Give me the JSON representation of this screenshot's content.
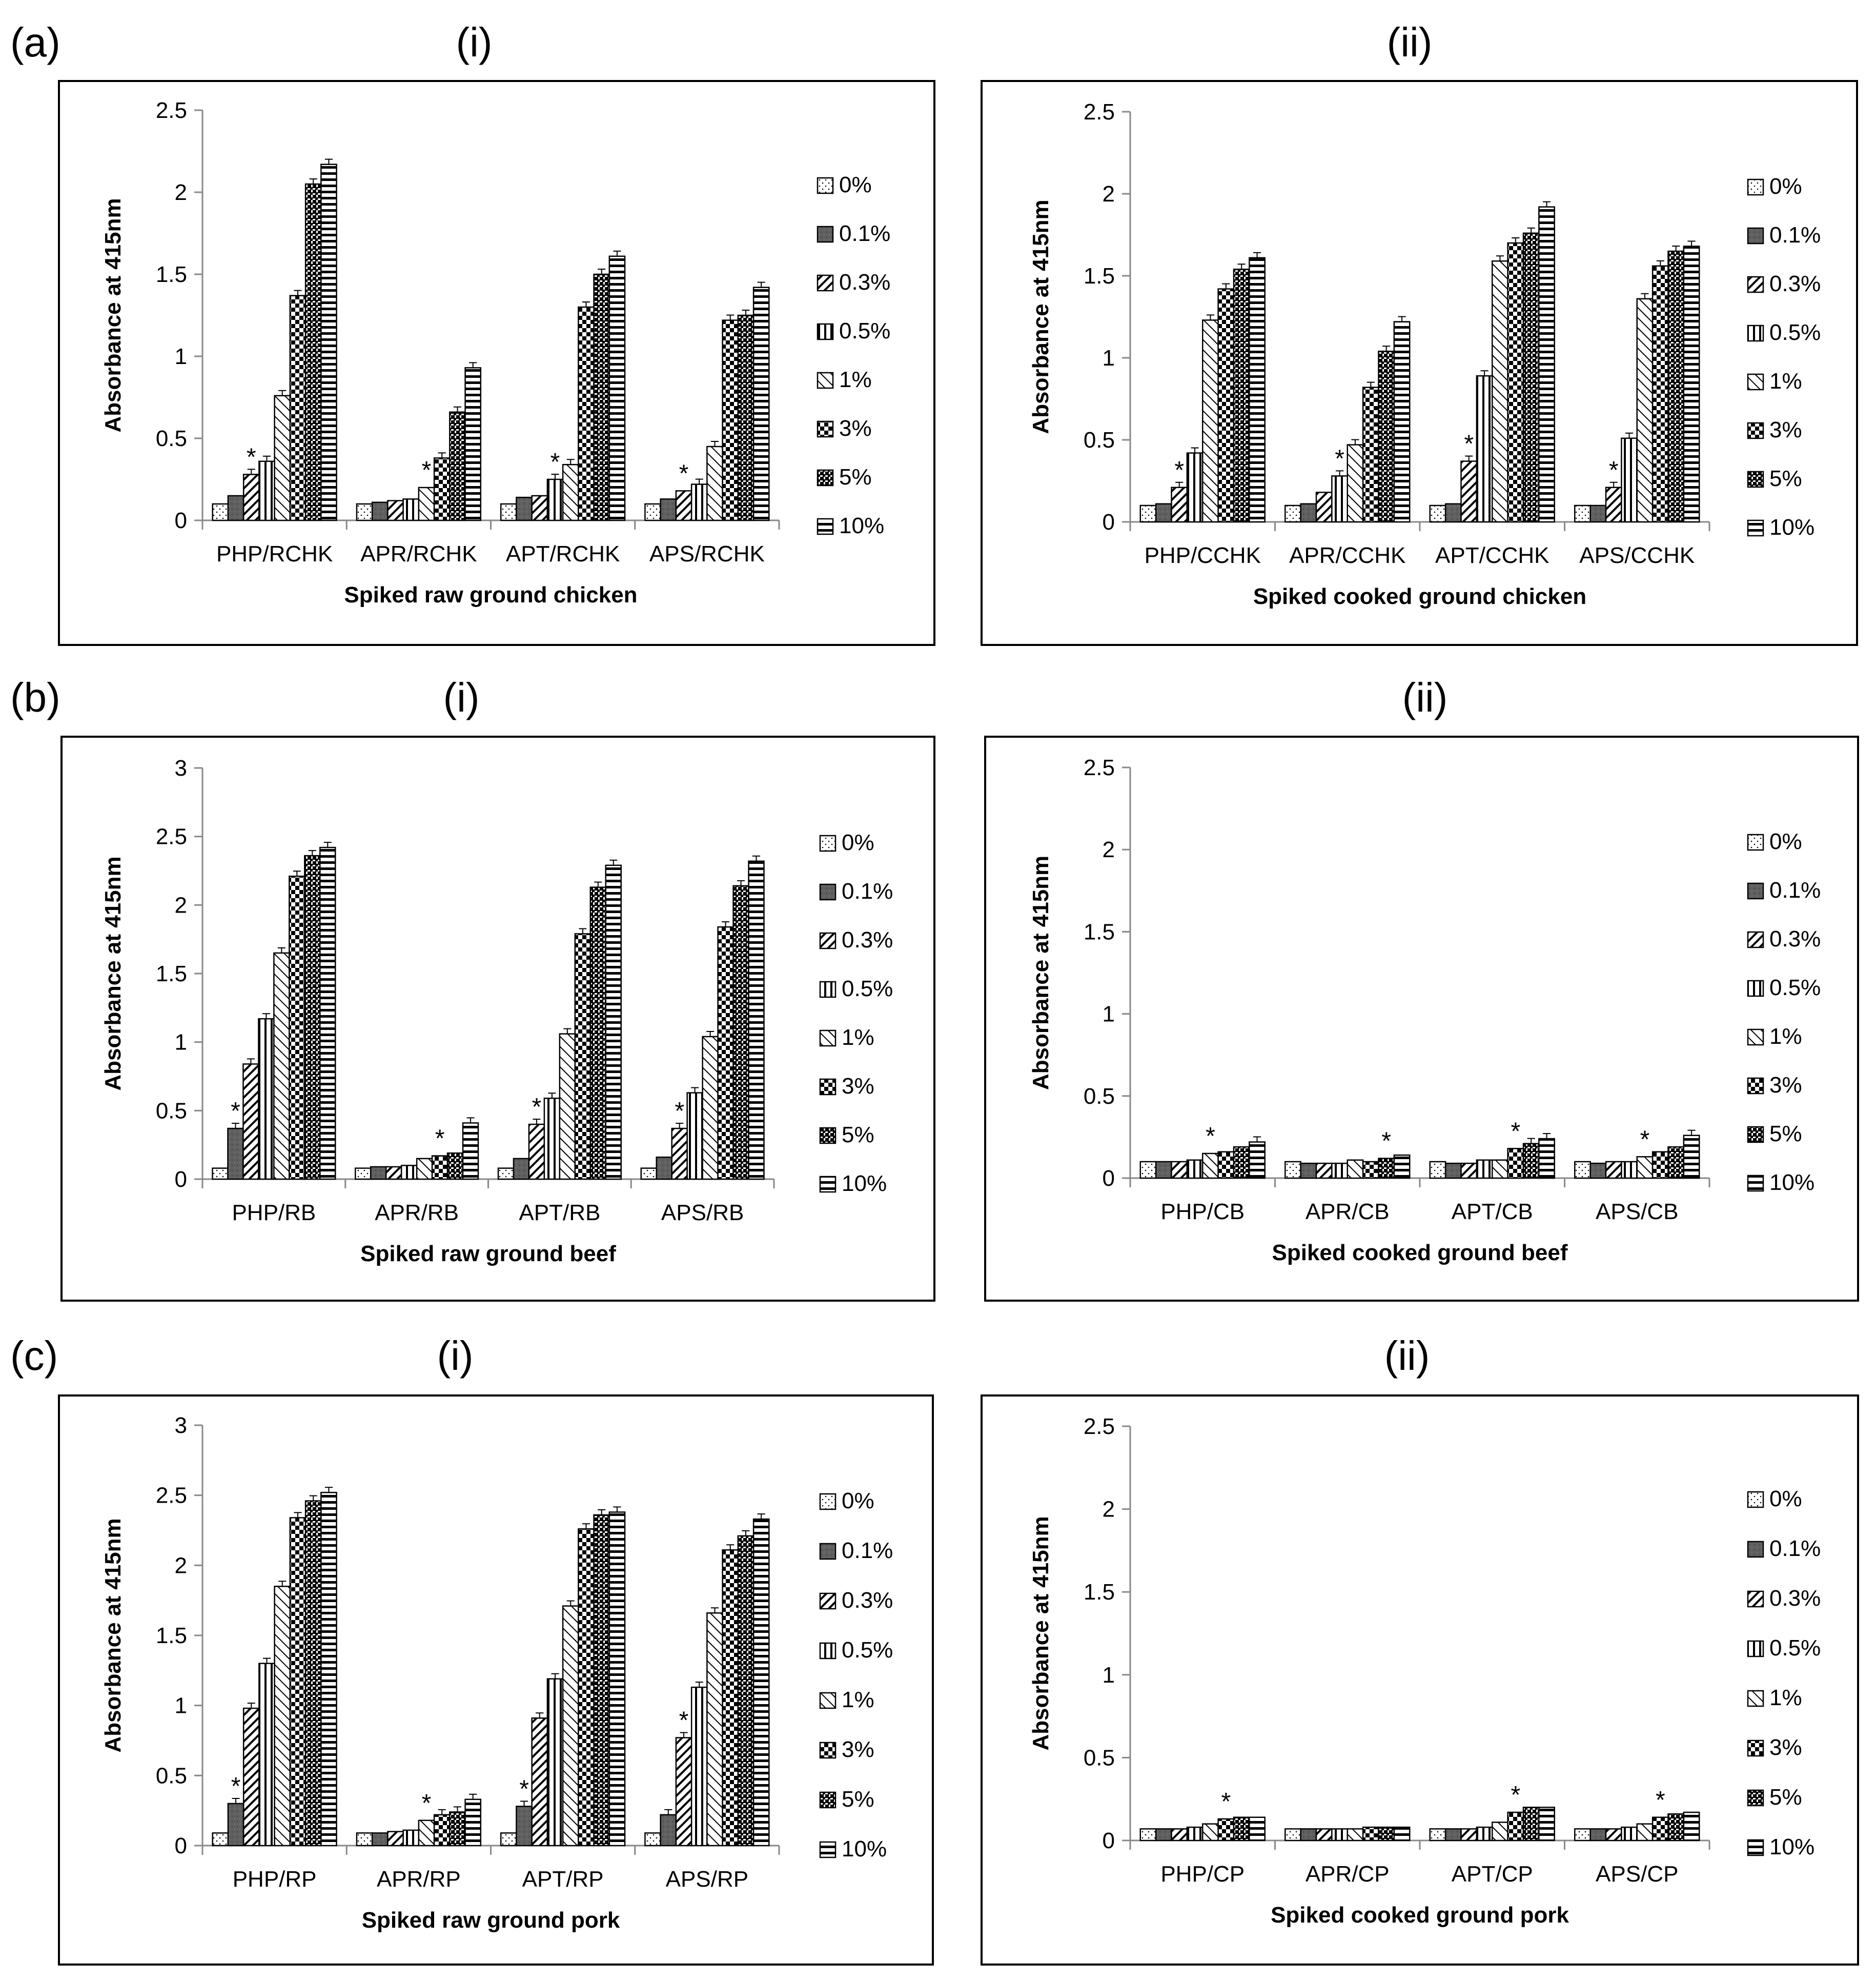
{
  "figure": {
    "legend_labels": [
      "0%",
      "0.1%",
      "0.3%",
      "0.5%",
      "1%",
      "3%",
      "5%",
      "10%"
    ],
    "y_axis_label": "Absorbance at 415nm"
  },
  "chart_data": [
    {
      "type": "bar",
      "panel": "(a)",
      "sub": "(i)",
      "title": "",
      "xlabel": "Spiked raw ground chicken",
      "ylabel": "Absorbance at 415nm",
      "ylim": [
        0,
        2.5
      ],
      "yticks": [
        "0",
        "0.5",
        "1",
        "1.5",
        "2",
        "2.5"
      ],
      "categories": [
        "PHP/RCHK",
        "APR/RCHK",
        "APT/RCHK",
        "APS/RCHK"
      ],
      "series": [
        {
          "name": "0%",
          "values": [
            0.1,
            0.1,
            0.1,
            0.1
          ]
        },
        {
          "name": "0.1%",
          "values": [
            0.15,
            0.11,
            0.14,
            0.13
          ]
        },
        {
          "name": "0.3%",
          "values": [
            0.28,
            0.12,
            0.15,
            0.18
          ]
        },
        {
          "name": "0.5%",
          "values": [
            0.36,
            0.13,
            0.25,
            0.22
          ]
        },
        {
          "name": "1%",
          "values": [
            0.76,
            0.2,
            0.34,
            0.45
          ]
        },
        {
          "name": "3%",
          "values": [
            1.37,
            0.38,
            1.3,
            1.22
          ]
        },
        {
          "name": "5%",
          "values": [
            2.05,
            0.66,
            1.5,
            1.25
          ]
        },
        {
          "name": "10%",
          "values": [
            2.17,
            0.93,
            1.61,
            1.42
          ]
        }
      ],
      "asterisk_series": [
        2,
        4,
        3,
        2
      ]
    },
    {
      "type": "bar",
      "panel": "",
      "sub": "(ii)",
      "title": "",
      "xlabel": "Spiked cooked ground chicken",
      "ylabel": "Absorbance at 415nm",
      "ylim": [
        0,
        2.5
      ],
      "yticks": [
        "0",
        "0.5",
        "1",
        "1.5",
        "2",
        "2.5"
      ],
      "categories": [
        "PHP/CCHK",
        "APR/CCHK",
        "APT/CCHK",
        "APS/CCHK"
      ],
      "series": [
        {
          "name": "0%",
          "values": [
            0.1,
            0.1,
            0.1,
            0.1
          ]
        },
        {
          "name": "0.1%",
          "values": [
            0.11,
            0.11,
            0.11,
            0.1
          ]
        },
        {
          "name": "0.3%",
          "values": [
            0.21,
            0.18,
            0.37,
            0.21
          ]
        },
        {
          "name": "0.5%",
          "values": [
            0.42,
            0.28,
            0.89,
            0.51
          ]
        },
        {
          "name": "1%",
          "values": [
            1.23,
            0.47,
            1.59,
            1.36
          ]
        },
        {
          "name": "3%",
          "values": [
            1.42,
            0.82,
            1.7,
            1.56
          ]
        },
        {
          "name": "5%",
          "values": [
            1.54,
            1.04,
            1.76,
            1.65
          ]
        },
        {
          "name": "10%",
          "values": [
            1.61,
            1.22,
            1.92,
            1.68
          ]
        }
      ],
      "asterisk_series": [
        2,
        3,
        2,
        2
      ]
    },
    {
      "type": "bar",
      "panel": "(b)",
      "sub": "(i)",
      "title": "",
      "xlabel": "Spiked raw ground beef",
      "ylabel": "Absorbance at 415nm",
      "ylim": [
        0,
        3
      ],
      "yticks": [
        "0",
        "0.5",
        "1",
        "1.5",
        "2",
        "2.5",
        "3"
      ],
      "categories": [
        "PHP/RB",
        "APR/RB",
        "APT/RB",
        "APS/RB"
      ],
      "series": [
        {
          "name": "0%",
          "values": [
            0.08,
            0.08,
            0.08,
            0.08
          ]
        },
        {
          "name": "0.1%",
          "values": [
            0.37,
            0.09,
            0.15,
            0.16
          ]
        },
        {
          "name": "0.3%",
          "values": [
            0.84,
            0.09,
            0.4,
            0.37
          ]
        },
        {
          "name": "0.5%",
          "values": [
            1.17,
            0.1,
            0.59,
            0.63
          ]
        },
        {
          "name": "1%",
          "values": [
            1.65,
            0.15,
            1.06,
            1.04
          ]
        },
        {
          "name": "3%",
          "values": [
            2.21,
            0.17,
            1.79,
            1.84
          ]
        },
        {
          "name": "5%",
          "values": [
            2.36,
            0.19,
            2.13,
            2.14
          ]
        },
        {
          "name": "10%",
          "values": [
            2.42,
            0.41,
            2.29,
            2.32
          ]
        }
      ],
      "asterisk_series": [
        1,
        5,
        2,
        2
      ]
    },
    {
      "type": "bar",
      "panel": "",
      "sub": "(ii)",
      "title": "",
      "xlabel": "Spiked cooked ground beef",
      "ylabel": "Absorbance at 415nm",
      "ylim": [
        0,
        2.5
      ],
      "yticks": [
        "0",
        "0.5",
        "1",
        "1.5",
        "2",
        "2.5"
      ],
      "categories": [
        "PHP/CB",
        "APR/CB",
        "APT/CB",
        "APS/CB"
      ],
      "series": [
        {
          "name": "0%",
          "values": [
            0.1,
            0.1,
            0.1,
            0.1
          ]
        },
        {
          "name": "0.1%",
          "values": [
            0.1,
            0.09,
            0.09,
            0.09
          ]
        },
        {
          "name": "0.3%",
          "values": [
            0.1,
            0.09,
            0.09,
            0.1
          ]
        },
        {
          "name": "0.5%",
          "values": [
            0.11,
            0.09,
            0.11,
            0.1
          ]
        },
        {
          "name": "1%",
          "values": [
            0.15,
            0.11,
            0.11,
            0.13
          ]
        },
        {
          "name": "3%",
          "values": [
            0.16,
            0.1,
            0.18,
            0.16
          ]
        },
        {
          "name": "5%",
          "values": [
            0.19,
            0.12,
            0.21,
            0.19
          ]
        },
        {
          "name": "10%",
          "values": [
            0.22,
            0.14,
            0.24,
            0.26
          ]
        }
      ],
      "asterisk_series": [
        4,
        6,
        5,
        4
      ]
    },
    {
      "type": "bar",
      "panel": "(c)",
      "sub": "(i)",
      "title": "",
      "xlabel": "Spiked raw ground pork",
      "ylabel": "Absorbance at 415nm",
      "ylim": [
        0,
        3
      ],
      "yticks": [
        "0",
        "0.5",
        "1",
        "1.5",
        "2",
        "2.5",
        "3"
      ],
      "categories": [
        "PHP/RP",
        "APR/RP",
        "APT/RP",
        "APS/RP"
      ],
      "series": [
        {
          "name": "0%",
          "values": [
            0.09,
            0.09,
            0.09,
            0.09
          ]
        },
        {
          "name": "0.1%",
          "values": [
            0.3,
            0.09,
            0.28,
            0.22
          ]
        },
        {
          "name": "0.3%",
          "values": [
            0.98,
            0.1,
            0.91,
            0.77
          ]
        },
        {
          "name": "0.5%",
          "values": [
            1.3,
            0.11,
            1.19,
            1.13
          ]
        },
        {
          "name": "1%",
          "values": [
            1.85,
            0.18,
            1.71,
            1.66
          ]
        },
        {
          "name": "3%",
          "values": [
            2.34,
            0.22,
            2.26,
            2.11
          ]
        },
        {
          "name": "5%",
          "values": [
            2.46,
            0.24,
            2.36,
            2.21
          ]
        },
        {
          "name": "10%",
          "values": [
            2.52,
            0.33,
            2.38,
            2.33
          ]
        }
      ],
      "asterisk_series": [
        1,
        4,
        1,
        2
      ]
    },
    {
      "type": "bar",
      "panel": "",
      "sub": "(ii)",
      "title": "",
      "xlabel": "Spiked cooked ground pork",
      "ylabel": "Absorbance at 415nm",
      "ylim": [
        0,
        2.5
      ],
      "yticks": [
        "0",
        "0.5",
        "1",
        "1.5",
        "2",
        "2.5"
      ],
      "categories": [
        "PHP/CP",
        "APR/CP",
        "APT/CP",
        "APS/CP"
      ],
      "series": [
        {
          "name": "0%",
          "values": [
            0.07,
            0.07,
            0.07,
            0.07
          ]
        },
        {
          "name": "0.1%",
          "values": [
            0.07,
            0.07,
            0.07,
            0.07
          ]
        },
        {
          "name": "0.3%",
          "values": [
            0.07,
            0.07,
            0.07,
            0.07
          ]
        },
        {
          "name": "0.5%",
          "values": [
            0.08,
            0.07,
            0.08,
            0.08
          ]
        },
        {
          "name": "1%",
          "values": [
            0.1,
            0.07,
            0.11,
            0.1
          ]
        },
        {
          "name": "3%",
          "values": [
            0.13,
            0.08,
            0.17,
            0.14
          ]
        },
        {
          "name": "5%",
          "values": [
            0.14,
            0.08,
            0.2,
            0.16
          ]
        },
        {
          "name": "10%",
          "values": [
            0.14,
            0.08,
            0.2,
            0.17
          ]
        }
      ],
      "asterisk_series": [
        5,
        -1,
        5,
        5
      ]
    }
  ]
}
